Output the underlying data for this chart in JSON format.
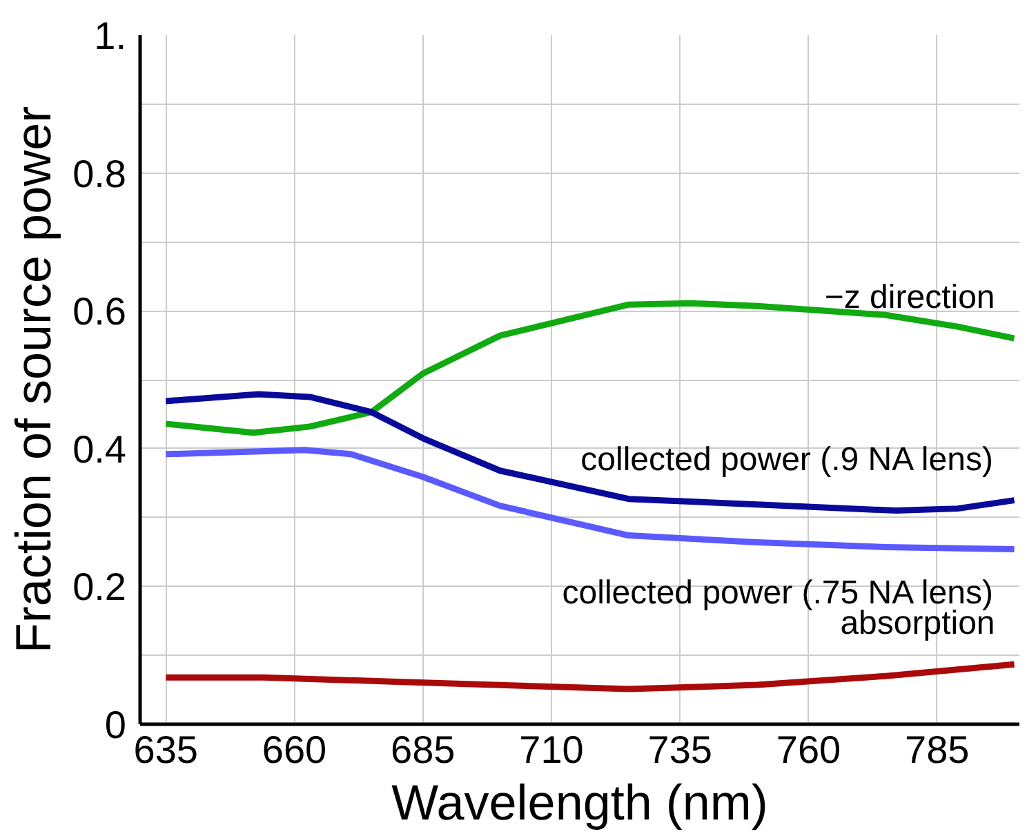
{
  "chart_data": {
    "type": "line",
    "xlabel": "Wavelength (nm)",
    "ylabel": "Fraction of source power",
    "xlim": [
      630,
      801
    ],
    "ylim": [
      0,
      1
    ],
    "xticks": [
      635,
      660,
      685,
      710,
      735,
      760,
      785
    ],
    "yticks": [
      0,
      {
        "value": 0.1,
        "label": null
      },
      0.2,
      {
        "value": 0.3,
        "label": null
      },
      0.4,
      {
        "value": 0.5,
        "label": null
      },
      0.6,
      {
        "value": 0.7,
        "label": null
      },
      0.8,
      {
        "value": 0.9,
        "label": null
      },
      {
        "value": 1,
        "label": "1."
      }
    ],
    "grid": true,
    "line_style": "solid",
    "series": [
      {
        "name": "−z direction",
        "color": "#11aa11",
        "x": [
          635,
          652,
          663,
          675,
          685,
          700,
          725,
          737,
          750,
          775,
          789,
          800
        ],
        "values": [
          0.436,
          0.423,
          0.432,
          0.453,
          0.509,
          0.564,
          0.609,
          0.611,
          0.607,
          0.594,
          0.577,
          0.56
        ]
      },
      {
        "name": "collected power (.9 NA lens)",
        "color": "#0a0a9a",
        "x": [
          635,
          653,
          663,
          675,
          685,
          700,
          725,
          750,
          777,
          789,
          800
        ],
        "values": [
          0.469,
          0.479,
          0.475,
          0.453,
          0.415,
          0.368,
          0.327,
          0.319,
          0.31,
          0.313,
          0.325
        ]
      },
      {
        "name": "collected power (.75 NA lens)",
        "color": "#5a5aff",
        "x": [
          635,
          649,
          662,
          671,
          685,
          700,
          725,
          750,
          775,
          800
        ],
        "values": [
          0.392,
          0.395,
          0.398,
          0.392,
          0.359,
          0.317,
          0.274,
          0.264,
          0.257,
          0.254
        ]
      },
      {
        "name": "absorption",
        "color": "#aa0a0a",
        "x": [
          635,
          654,
          682,
          725,
          750,
          775,
          800
        ],
        "values": [
          0.068,
          0.068,
          0.061,
          0.051,
          0.057,
          0.07,
          0.087
        ]
      }
    ]
  }
}
